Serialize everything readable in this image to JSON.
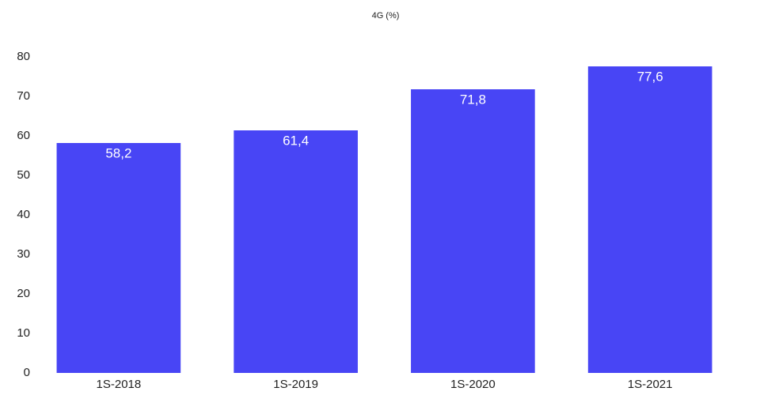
{
  "chart_data": {
    "type": "bar",
    "title": "4G (%)",
    "categories": [
      "1S-2018",
      "1S-2019",
      "1S-2020",
      "1S-2021"
    ],
    "values": [
      58.2,
      61.4,
      71.8,
      77.6
    ],
    "value_labels": [
      "58,2",
      "61,4",
      "71,8",
      "77,6"
    ],
    "color": "#4845f5",
    "ylim": [
      0,
      80
    ],
    "yticks": [
      0,
      10,
      20,
      30,
      40,
      50,
      60,
      70,
      80
    ],
    "grid": false
  }
}
